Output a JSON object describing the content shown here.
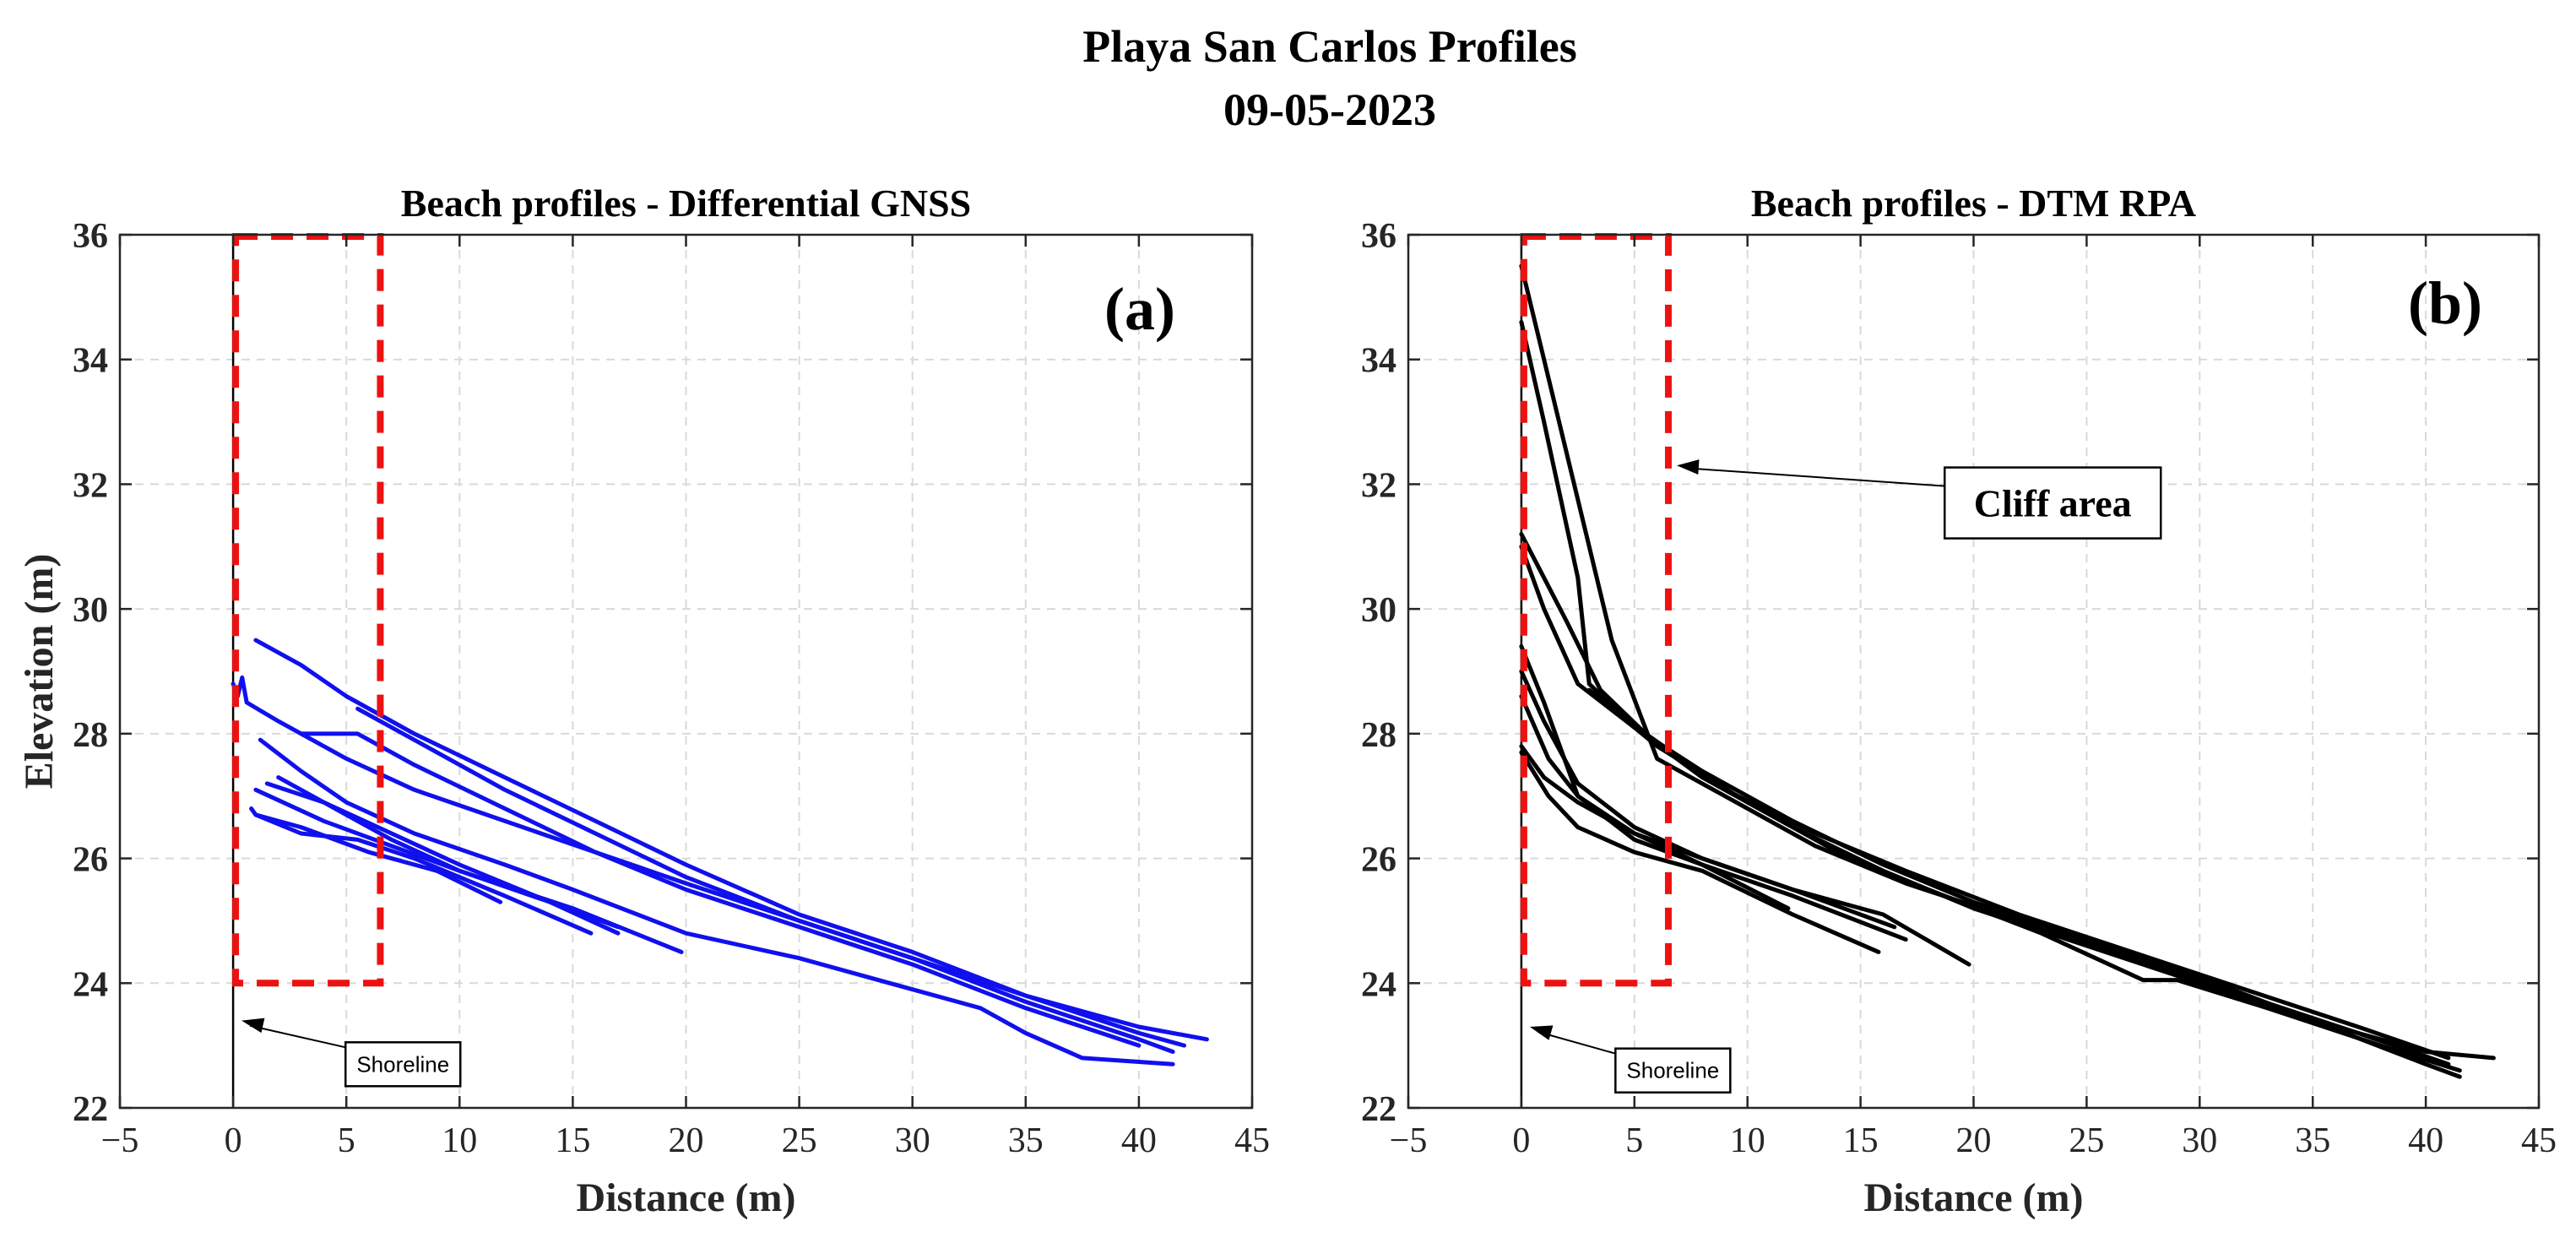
{
  "figure": {
    "title_line1": "Playa San Carlos Profiles",
    "title_line2": "09-05-2023"
  },
  "chart_data": [
    {
      "type": "line",
      "panel_label": "(a)",
      "title": "Beach profiles - Differential GNSS",
      "xlabel": "Distance (m)",
      "ylabel": "Elevation (m)",
      "xlim": [
        -5,
        45
      ],
      "ylim": [
        22,
        36
      ],
      "xticks": [
        -5,
        0,
        5,
        10,
        15,
        20,
        25,
        30,
        35,
        40,
        45
      ],
      "yticks": [
        22,
        24,
        26,
        28,
        30,
        32,
        34,
        36
      ],
      "grid": true,
      "line_color": "#1010ee",
      "shoreline_x": 0,
      "highlight_box": {
        "x": [
          0,
          6.5
        ],
        "y": [
          24,
          36
        ],
        "color": "#ee1111"
      },
      "annotations": [
        {
          "text": "Shoreline",
          "arrow_to": [
            0,
            23.4
          ],
          "label_at": [
            7.5,
            22.7
          ]
        }
      ],
      "series": [
        {
          "points": [
            [
              1,
              29.5
            ],
            [
              3,
              29.1
            ],
            [
              5,
              28.6
            ],
            [
              8,
              28.0
            ],
            [
              12,
              27.3
            ],
            [
              16,
              26.6
            ],
            [
              20,
              25.9
            ],
            [
              25,
              25.1
            ],
            [
              30,
              24.5
            ],
            [
              35,
              23.8
            ],
            [
              40,
              23.3
            ],
            [
              43,
              23.1
            ]
          ]
        },
        {
          "points": [
            [
              5.5,
              28.4
            ],
            [
              8,
              27.9
            ],
            [
              12,
              27.1
            ],
            [
              16,
              26.4
            ],
            [
              20,
              25.7
            ],
            [
              25,
              25.0
            ],
            [
              30,
              24.4
            ],
            [
              35,
              23.7
            ],
            [
              40,
              23.1
            ],
            [
              41.5,
              22.9
            ]
          ]
        },
        {
          "points": [
            [
              0,
              28.8
            ],
            [
              0.2,
              28.6
            ],
            [
              0.4,
              28.9
            ],
            [
              0.6,
              28.5
            ],
            [
              2,
              28.2
            ],
            [
              5,
              27.6
            ],
            [
              8,
              27.1
            ],
            [
              12,
              26.6
            ],
            [
              16,
              26.1
            ],
            [
              20,
              25.6
            ],
            [
              25,
              25.0
            ],
            [
              30,
              24.4
            ],
            [
              35,
              23.8
            ],
            [
              40,
              23.2
            ],
            [
              42,
              23.0
            ]
          ]
        },
        {
          "points": [
            [
              3,
              28.0
            ],
            [
              5.5,
              28.0
            ],
            [
              8,
              27.5
            ],
            [
              12,
              26.8
            ],
            [
              16,
              26.1
            ],
            [
              20,
              25.5
            ],
            [
              25,
              24.9
            ],
            [
              30,
              24.3
            ],
            [
              35,
              23.6
            ],
            [
              40,
              23.0
            ]
          ]
        },
        {
          "points": [
            [
              1.2,
              27.9
            ],
            [
              3,
              27.4
            ],
            [
              5,
              26.9
            ],
            [
              8,
              26.4
            ],
            [
              12,
              25.9
            ],
            [
              15,
              25.5
            ],
            [
              20,
              24.8
            ],
            [
              25,
              24.4
            ],
            [
              30,
              23.9
            ],
            [
              33,
              23.6
            ],
            [
              35,
              23.2
            ],
            [
              37.5,
              22.8
            ],
            [
              41.5,
              22.7
            ]
          ]
        },
        {
          "points": [
            [
              1.5,
              27.2
            ],
            [
              4,
              26.9
            ],
            [
              7,
              26.4
            ],
            [
              10,
              25.9
            ],
            [
              14,
              25.3
            ],
            [
              17,
              24.8
            ]
          ]
        },
        {
          "points": [
            [
              1,
              27.1
            ],
            [
              4,
              26.6
            ],
            [
              7,
              26.2
            ],
            [
              10,
              25.8
            ],
            [
              14,
              25.3
            ],
            [
              17,
              24.9
            ]
          ]
        },
        {
          "points": [
            [
              2,
              27.3
            ],
            [
              4.5,
              26.8
            ],
            [
              7,
              26.3
            ],
            [
              10,
              25.8
            ],
            [
              15,
              25.2
            ],
            [
              19.8,
              24.5
            ]
          ]
        },
        {
          "points": [
            [
              0.8,
              26.8
            ],
            [
              1,
              26.7
            ],
            [
              3,
              26.4
            ],
            [
              5.5,
              26.3
            ],
            [
              8,
              26.0
            ],
            [
              12,
              25.4
            ],
            [
              15.8,
              24.8
            ]
          ]
        },
        {
          "points": [
            [
              1,
              26.7
            ],
            [
              3,
              26.5
            ],
            [
              6,
              26.1
            ],
            [
              9,
              25.8
            ],
            [
              11.8,
              25.3
            ]
          ]
        }
      ]
    },
    {
      "type": "line",
      "panel_label": "(b)",
      "title": "Beach profiles - DTM RPA",
      "xlabel": "Distance (m)",
      "xlim": [
        -5,
        45
      ],
      "ylim": [
        22,
        36
      ],
      "xticks": [
        -5,
        0,
        5,
        10,
        15,
        20,
        25,
        30,
        35,
        40,
        45
      ],
      "yticks": [
        22,
        24,
        26,
        28,
        30,
        32,
        34,
        36
      ],
      "grid": true,
      "line_color": "#000000",
      "shoreline_x": 0,
      "highlight_box": {
        "x": [
          0,
          6.5
        ],
        "y": [
          24,
          36
        ],
        "color": "#ee1111"
      },
      "annotations": [
        {
          "text": "Cliff area",
          "arrow_to": [
            6.5,
            32.3
          ],
          "label_at": [
            23.5,
            31.7
          ]
        },
        {
          "text": "Shoreline",
          "arrow_to": [
            0,
            23.3
          ],
          "label_at": [
            6.7,
            22.6
          ]
        }
      ],
      "series": [
        {
          "points": [
            [
              0,
              35.5
            ],
            [
              2,
              32.5
            ],
            [
              4,
              29.5
            ],
            [
              6,
              27.6
            ],
            [
              9,
              27.0
            ],
            [
              13,
              26.2
            ],
            [
              17,
              25.6
            ],
            [
              22,
              25.0
            ],
            [
              27,
              24.4
            ],
            [
              32,
              23.8
            ],
            [
              37,
              23.2
            ],
            [
              41,
              22.7
            ]
          ]
        },
        {
          "points": [
            [
              0,
              34.6
            ],
            [
              1,
              33.0
            ],
            [
              2.5,
              30.5
            ],
            [
              3,
              28.8
            ],
            [
              5,
              28.1
            ],
            [
              8,
              27.4
            ],
            [
              12,
              26.6
            ],
            [
              16,
              25.9
            ],
            [
              20,
              25.3
            ],
            [
              25,
              24.7
            ],
            [
              30,
              24.1
            ],
            [
              35,
              23.4
            ],
            [
              40,
              22.9
            ],
            [
              43,
              22.8
            ]
          ]
        },
        {
          "points": [
            [
              0,
              31.2
            ],
            [
              2,
              29.8
            ],
            [
              3.5,
              28.7
            ],
            [
              5.5,
              28.0
            ],
            [
              9,
              27.1
            ],
            [
              13,
              26.4
            ],
            [
              17,
              25.8
            ],
            [
              22,
              25.1
            ],
            [
              27,
              24.5
            ],
            [
              32,
              23.9
            ],
            [
              37,
              23.3
            ],
            [
              41,
              22.8
            ]
          ]
        },
        {
          "points": [
            [
              0,
              31.0
            ],
            [
              1,
              30.0
            ],
            [
              2.5,
              28.8
            ],
            [
              5,
              28.1
            ],
            [
              8,
              27.3
            ],
            [
              12,
              26.5
            ],
            [
              16,
              25.8
            ],
            [
              20,
              25.2
            ],
            [
              25,
              24.6
            ],
            [
              30,
              24.0
            ],
            [
              35,
              23.4
            ],
            [
              40,
              22.7
            ],
            [
              41.5,
              22.5
            ]
          ]
        },
        {
          "points": [
            [
              0,
              29.4
            ],
            [
              1,
              28.5
            ],
            [
              2.5,
              27.0
            ],
            [
              5,
              26.3
            ],
            [
              8,
              25.9
            ],
            [
              12,
              25.4
            ],
            [
              17,
              24.7
            ]
          ]
        },
        {
          "points": [
            [
              0,
              29.0
            ],
            [
              1,
              28.2
            ],
            [
              2.5,
              27.2
            ],
            [
              5,
              26.5
            ],
            [
              8,
              26.0
            ],
            [
              12,
              25.5
            ],
            [
              16.5,
              24.9
            ]
          ]
        },
        {
          "points": [
            [
              0,
              28.6
            ],
            [
              1.2,
              27.6
            ],
            [
              2.5,
              27.0
            ],
            [
              5,
              26.4
            ],
            [
              8,
              26.0
            ],
            [
              12,
              25.5
            ],
            [
              16,
              25.1
            ],
            [
              19.8,
              24.3
            ]
          ]
        },
        {
          "points": [
            [
              0,
              27.7
            ],
            [
              1.2,
              27.0
            ],
            [
              2.5,
              26.5
            ],
            [
              5,
              26.1
            ],
            [
              8,
              25.8
            ],
            [
              12,
              25.1
            ],
            [
              15.8,
              24.5
            ]
          ]
        },
        {
          "points": [
            [
              0,
              27.8
            ],
            [
              1,
              27.3
            ],
            [
              2.5,
              26.9
            ],
            [
              5,
              26.4
            ],
            [
              8,
              25.9
            ],
            [
              11.8,
              25.2
            ]
          ]
        },
        {
          "points": [
            [
              3,
              28.7
            ],
            [
              6,
              27.8
            ],
            [
              10,
              26.9
            ],
            [
              14,
              26.1
            ],
            [
              18,
              25.5
            ],
            [
              23,
              24.8
            ],
            [
              27.5,
              24.05
            ],
            [
              29,
              24.05
            ],
            [
              33,
              23.6
            ],
            [
              38,
              23.0
            ],
            [
              41.5,
              22.6
            ]
          ]
        }
      ]
    }
  ]
}
